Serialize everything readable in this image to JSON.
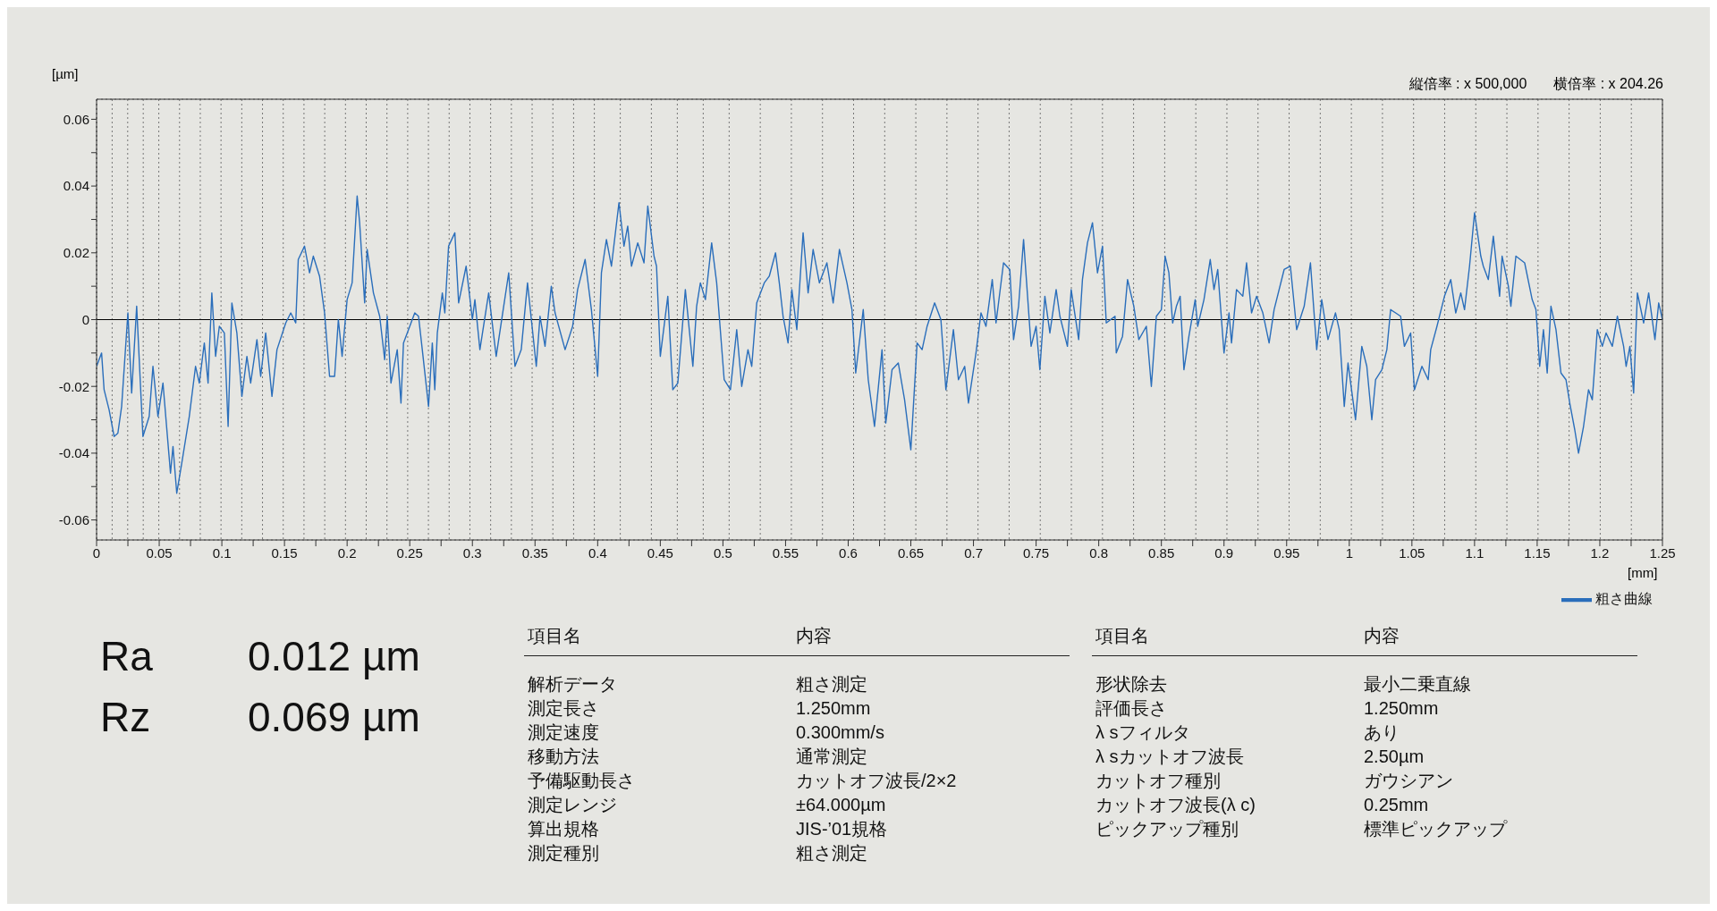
{
  "chart_data": {
    "type": "line",
    "ylabel": "[µm]",
    "xlabel": "[mm]",
    "x": [
      0,
      0.004,
      0.006,
      0.01,
      0.014,
      0.017,
      0.02,
      0.025,
      0.028,
      0.032,
      0.037,
      0.042,
      0.045,
      0.049,
      0.053,
      0.059,
      0.061,
      0.064,
      0.068,
      0.074,
      0.079,
      0.082,
      0.086,
      0.089,
      0.092,
      0.095,
      0.098,
      0.102,
      0.105,
      0.108,
      0.112,
      0.116,
      0.12,
      0.123,
      0.128,
      0.131,
      0.135,
      0.14,
      0.144,
      0.151,
      0.155,
      0.159,
      0.161,
      0.166,
      0.17,
      0.173,
      0.178,
      0.182,
      0.186,
      0.19,
      0.193,
      0.196,
      0.2,
      0.204,
      0.208,
      0.21,
      0.214,
      0.216,
      0.221,
      0.226,
      0.23,
      0.232,
      0.235,
      0.24,
      0.243,
      0.245,
      0.25,
      0.254,
      0.257,
      0.26,
      0.265,
      0.268,
      0.27,
      0.272,
      0.276,
      0.278,
      0.281,
      0.286,
      0.289,
      0.295,
      0.3,
      0.302,
      0.306,
      0.313,
      0.319,
      0.329,
      0.334,
      0.339,
      0.344,
      0.351,
      0.354,
      0.358,
      0.363,
      0.366,
      0.374,
      0.38,
      0.384,
      0.39,
      0.395,
      0.4,
      0.403,
      0.407,
      0.411,
      0.417,
      0.421,
      0.424,
      0.427,
      0.432,
      0.437,
      0.44,
      0.445,
      0.447,
      0.45,
      0.456,
      0.46,
      0.464,
      0.47,
      0.476,
      0.479,
      0.482,
      0.486,
      0.491,
      0.495,
      0.501,
      0.506,
      0.511,
      0.515,
      0.52,
      0.523,
      0.527,
      0.533,
      0.537,
      0.542,
      0.545,
      0.548,
      0.552,
      0.555,
      0.559,
      0.564,
      0.568,
      0.572,
      0.577,
      0.583,
      0.588,
      0.593,
      0.599,
      0.603,
      0.606,
      0.612,
      0.616,
      0.621,
      0.627,
      0.63,
      0.635,
      0.64,
      0.645,
      0.65,
      0.655,
      0.659,
      0.663,
      0.669,
      0.674,
      0.678,
      0.684,
      0.688,
      0.693,
      0.696,
      0.702,
      0.706,
      0.71,
      0.715,
      0.718,
      0.724,
      0.729,
      0.732,
      0.736,
      0.74,
      0.746,
      0.75,
      0.753,
      0.757,
      0.761,
      0.766,
      0.769,
      0.775,
      0.778,
      0.784,
      0.787,
      0.791,
      0.795,
      0.799,
      0.803,
      0.806,
      0.813,
      0.814,
      0.819,
      0.823,
      0.828,
      0.832,
      0.838,
      0.842,
      0.846,
      0.85,
      0.853,
      0.856,
      0.859,
      0.862,
      0.865,
      0.868,
      0.872,
      0.877,
      0.879,
      0.884,
      0.889,
      0.892,
      0.895,
      0.9,
      0.904,
      0.906,
      0.91,
      0.915,
      0.918,
      0.922,
      0.926,
      0.931,
      0.936,
      0.94,
      0.948,
      0.953,
      0.958,
      0.964,
      0.969,
      0.974,
      0.978,
      0.983,
      0.989,
      0.992,
      0.996,
      0.999,
      1.005,
      1.01,
      1.014,
      1.018,
      1.021,
      1.026,
      1.03,
      1.033,
      1.037,
      1.041,
      1.044,
      1.049,
      1.052,
      1.058,
      1.063,
      1.065,
      1.07,
      1.076,
      1.081,
      1.085,
      1.089,
      1.092,
      1.096,
      1.1,
      1.105,
      1.107,
      1.111,
      1.115,
      1.12,
      1.122,
      1.127,
      1.129,
      1.133,
      1.14,
      1.146,
      1.149,
      1.152,
      1.155,
      1.158,
      1.161,
      1.165,
      1.169,
      1.173,
      1.176,
      1.18,
      1.183,
      1.187,
      1.191,
      1.194,
      1.198,
      1.202,
      1.205,
      1.21,
      1.214,
      1.219,
      1.221,
      1.224,
      1.227,
      1.23,
      1.235,
      1.239,
      1.244,
      1.247,
      1.25
    ],
    "series": [
      {
        "name": "粗さ曲線",
        "color": "#2a6ebb",
        "values": [
          -0.014,
          -0.01,
          -0.021,
          -0.027,
          -0.035,
          -0.034,
          -0.026,
          0.002,
          -0.022,
          0.004,
          -0.035,
          -0.029,
          -0.014,
          -0.029,
          -0.019,
          -0.046,
          -0.038,
          -0.052,
          -0.043,
          -0.029,
          -0.014,
          -0.019,
          -0.007,
          -0.019,
          0.008,
          -0.011,
          -0.002,
          -0.004,
          -0.032,
          0.005,
          -0.004,
          -0.023,
          -0.011,
          -0.019,
          -0.006,
          -0.017,
          -0.004,
          -0.023,
          -0.009,
          -0.001,
          0.002,
          -0.001,
          0.018,
          0.022,
          0.014,
          0.019,
          0.013,
          0.002,
          -0.017,
          -0.017,
          0.0,
          -0.011,
          0.006,
          0.011,
          0.037,
          0.029,
          0.005,
          0.021,
          0.008,
          0.001,
          -0.012,
          0.001,
          -0.019,
          -0.009,
          -0.025,
          -0.007,
          -0.002,
          0.002,
          0.001,
          -0.009,
          -0.026,
          -0.007,
          -0.021,
          -0.004,
          0.008,
          0.002,
          0.022,
          0.026,
          0.005,
          0.016,
          0.0,
          0.006,
          -0.009,
          0.008,
          -0.011,
          0.014,
          -0.014,
          -0.009,
          0.011,
          -0.014,
          0.001,
          -0.008,
          0.01,
          0.002,
          -0.009,
          -0.002,
          0.009,
          0.018,
          0.003,
          -0.017,
          0.014,
          0.024,
          0.016,
          0.035,
          0.022,
          0.028,
          0.016,
          0.023,
          0.017,
          0.034,
          0.019,
          0.016,
          -0.011,
          0.007,
          -0.021,
          -0.019,
          0.009,
          -0.014,
          0.004,
          0.011,
          0.006,
          0.023,
          0.011,
          -0.018,
          -0.021,
          -0.003,
          -0.02,
          -0.009,
          -0.014,
          0.005,
          0.011,
          0.013,
          0.02,
          0.011,
          0.001,
          -0.007,
          0.009,
          -0.003,
          0.026,
          0.008,
          0.021,
          0.011,
          0.017,
          0.005,
          0.021,
          0.011,
          0.003,
          -0.016,
          0.003,
          -0.018,
          -0.032,
          -0.009,
          -0.031,
          -0.015,
          -0.013,
          -0.024,
          -0.039,
          -0.007,
          -0.009,
          -0.002,
          0.005,
          0.0,
          -0.021,
          -0.003,
          -0.018,
          -0.014,
          -0.025,
          -0.01,
          0.002,
          -0.002,
          0.012,
          -0.001,
          0.017,
          0.015,
          -0.006,
          0.004,
          0.024,
          -0.008,
          -0.002,
          -0.015,
          0.007,
          -0.004,
          0.009,
          0.001,
          -0.008,
          0.009,
          -0.006,
          0.012,
          0.023,
          0.029,
          0.014,
          0.022,
          -0.001,
          0.001,
          -0.01,
          -0.005,
          0.012,
          0.004,
          -0.006,
          -0.002,
          -0.02,
          0.001,
          0.003,
          0.019,
          0.014,
          -0.001,
          0.004,
          0.007,
          -0.015,
          -0.005,
          0.006,
          -0.002,
          0.006,
          0.018,
          0.009,
          0.015,
          -0.01,
          0.002,
          -0.007,
          0.009,
          0.007,
          0.017,
          0.002,
          0.007,
          0.002,
          -0.007,
          0.003,
          0.015,
          0.016,
          -0.003,
          0.004,
          0.017,
          -0.009,
          0.006,
          -0.006,
          0.002,
          -0.003,
          -0.026,
          -0.013,
          -0.03,
          -0.008,
          -0.014,
          -0.03,
          -0.018,
          -0.015,
          -0.009,
          0.003,
          0.002,
          0.001,
          -0.008,
          -0.004,
          -0.021,
          -0.014,
          -0.018,
          -0.009,
          -0.002,
          0.007,
          0.012,
          0.002,
          0.008,
          0.003,
          0.016,
          0.032,
          0.019,
          0.016,
          0.012,
          0.025,
          0.007,
          0.019,
          0.01,
          0.004,
          0.019,
          0.017,
          0.006,
          0.003,
          -0.014,
          -0.003,
          -0.016,
          0.004,
          -0.003,
          -0.016,
          -0.018,
          -0.025,
          -0.033,
          -0.04,
          -0.032,
          -0.021,
          -0.024,
          -0.003,
          -0.008,
          -0.004,
          -0.008,
          0.001,
          -0.008,
          -0.014,
          -0.008,
          -0.022,
          0.008,
          -0.001,
          0.008,
          -0.006,
          0.005,
          0.0
        ]
      }
    ],
    "xlim": [
      0,
      1.25
    ],
    "xticks": [
      0,
      {
        "value": 0.025,
        "label": null
      },
      0.05,
      {
        "value": 0.075,
        "label": null
      },
      0.1,
      {
        "value": 0.125,
        "label": null
      },
      0.15,
      {
        "value": 0.175,
        "label": null
      },
      0.2,
      {
        "value": 0.225,
        "label": null
      },
      0.25,
      {
        "value": 0.275,
        "label": null
      },
      0.3,
      {
        "value": 0.325,
        "label": null
      },
      0.35,
      {
        "value": 0.375,
        "label": null
      },
      0.4,
      {
        "value": 0.425,
        "label": null
      },
      0.45,
      {
        "value": 0.475,
        "label": null
      },
      0.5,
      {
        "value": 0.525,
        "label": null
      },
      0.55,
      {
        "value": 0.575,
        "label": null
      },
      0.6,
      {
        "value": 0.625,
        "label": null
      },
      0.65,
      {
        "value": 0.675,
        "label": null
      },
      0.7,
      {
        "value": 0.725,
        "label": null
      },
      0.75,
      {
        "value": 0.775,
        "label": null
      },
      0.8,
      {
        "value": 0.825,
        "label": null
      },
      0.85,
      {
        "value": 0.875,
        "label": null
      },
      0.9,
      {
        "value": 0.925,
        "label": null
      },
      0.95,
      {
        "value": 0.975,
        "label": null
      },
      1,
      {
        "value": 1.025,
        "label": null
      },
      1.05,
      {
        "value": 1.075,
        "label": null
      },
      1.1,
      {
        "value": 1.125,
        "label": null
      },
      1.15,
      {
        "value": 1.175,
        "label": null
      },
      1.2,
      {
        "value": 1.225,
        "label": null
      },
      1.25
    ],
    "ylim": [
      -0.066,
      0.066
    ],
    "yticks": [
      -0.06,
      {
        "value": -0.05,
        "label": null
      },
      -0.04,
      {
        "value": -0.03,
        "label": null
      },
      -0.02,
      {
        "value": -0.01,
        "label": null
      },
      0,
      {
        "value": 0.01,
        "label": null
      },
      0.02,
      {
        "value": 0.03,
        "label": null
      },
      0.04,
      {
        "value": 0.05,
        "label": null
      },
      0.06
    ],
    "grid": true,
    "legend": "bottom right",
    "marker": "none",
    "line_style": "solid",
    "ref_lines": [
      {
        "axis": "y",
        "value": 0,
        "color": "#000000"
      }
    ],
    "annotations": [
      "縦倍率 : x 500,000",
      "横倍率 : x 204.26",
      "Ra",
      "0.012 µm",
      "Rz",
      "0.069 µm",
      "項目名",
      "内容",
      "解析データ",
      "粗さ測定",
      "測定長さ",
      "1.250mm",
      "測定速度",
      "0.300mm/s",
      "移動方法",
      "通常測定",
      "予備駆動長さ",
      "カットオフ波長/2×2",
      "測定レンジ",
      "±64.000µm",
      "算出規格",
      "JIS-’01規格",
      "測定種別",
      "粗さ測定",
      "項目名",
      "内容",
      "形状除去",
      "最小二乗直線",
      "評価長さ",
      "1.250mm",
      "λ sフィルタ",
      "あり",
      "λ sカットオフ波長",
      "2.50µm",
      "カットオフ種別",
      "ガウシアン",
      "カットオフ波長(λ c)",
      "0.25mm",
      "ピックアップ種別",
      "標準ピックアップ"
    ]
  }
}
